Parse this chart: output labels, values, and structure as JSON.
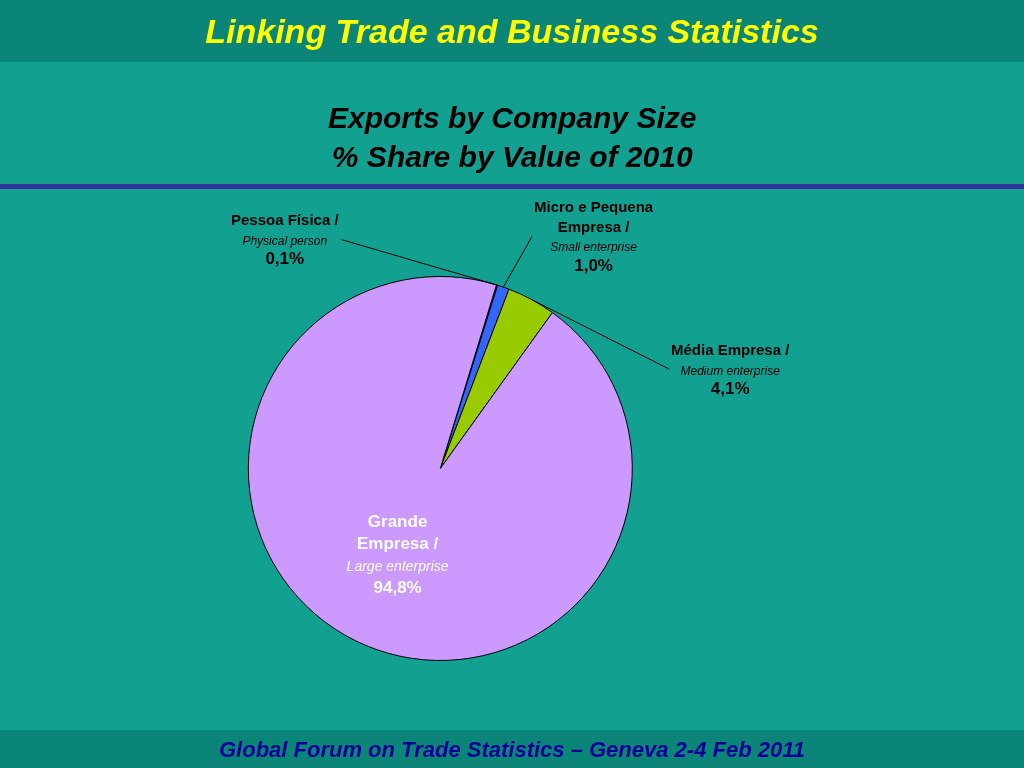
{
  "chart_data": {
    "type": "pie",
    "title": "Linking Trade and Business Statistics",
    "subtitle": "Exports by Company Size\n% Share by Value of 2010",
    "categories": [
      "Pessoa Física /\nPhysical person",
      "Micro e Pequena\nEmpresa /\nSmall enterprise",
      "Média Empresa /\nMedium enterprise",
      "Grande\nEmpresa /\nLarge enterprise"
    ],
    "values": [
      0.1,
      1.0,
      4.1,
      94.8
    ],
    "colors": [
      "#a6a6a6",
      "#3366ff",
      "#99cc00",
      "#cc99ff"
    ],
    "value_labels": [
      "0,1%",
      "1,0%",
      "4,1%",
      "94,8%"
    ],
    "annotations": [
      "Global Forum on Trade Statistics – Geneva 2-4 Feb 2011"
    ]
  }
}
